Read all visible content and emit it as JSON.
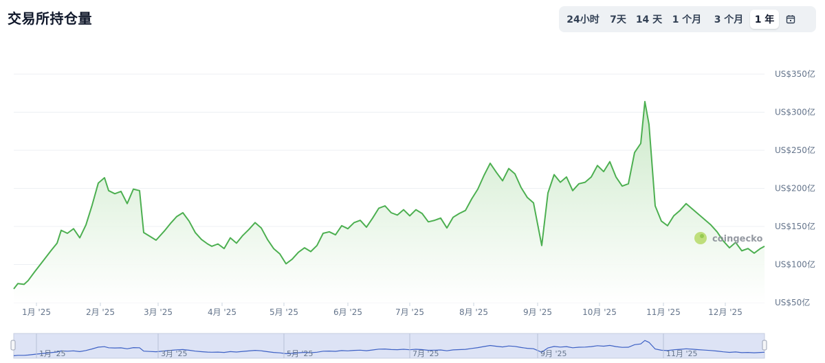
{
  "header": {
    "title": "交易所持仓量"
  },
  "range_selector": {
    "options": [
      "24小时",
      "7天",
      "14 天",
      "1 个月",
      "3 个月",
      "1 年"
    ],
    "active": "1 年",
    "calendar_icon": "calendar-icon"
  },
  "watermark": {
    "text": "coingecko",
    "logo_icon": "coingecko-gecko-icon"
  },
  "colors": {
    "line": "#4caf50",
    "fill_top": "#c9e8c6",
    "navigator_line": "#3b5fc4",
    "navigator_bg": "#dde3f5"
  },
  "chart_data": {
    "type": "area",
    "y_unit": "US$亿",
    "ylim": [
      50,
      350
    ],
    "y_ticks": [
      50,
      100,
      150,
      200,
      250,
      300,
      350
    ],
    "y_tick_labels": [
      "US$50亿",
      "US$100亿",
      "US$150亿",
      "US$200亿",
      "US$250亿",
      "US$300亿",
      "US$350亿"
    ],
    "x_ticks": [
      "1月 '25",
      "2月 '25",
      "3月 '25",
      "4月 '25",
      "5月 '25",
      "6月 '25",
      "7月 '25",
      "8月 '25",
      "9月 '25",
      "10月 '25",
      "11月 '25",
      "12月 '25"
    ],
    "navigator_ticks": [
      "1月 '25",
      "3月 '25",
      "5月 '25",
      "7月 '25",
      "9月 '25",
      "11月 '25"
    ],
    "grid": true,
    "x_start": "2024-12-21",
    "x_end": "2025-12-20",
    "series": [
      {
        "values": [
          [
            "2024-12-21",
            68
          ],
          [
            "2024-12-23",
            75
          ],
          [
            "2024-12-26",
            74
          ],
          [
            "2024-12-28",
            79
          ],
          [
            "2024-12-31",
            90
          ],
          [
            "2025-01-04",
            104
          ],
          [
            "2025-01-08",
            118
          ],
          [
            "2025-01-11",
            128
          ],
          [
            "2025-01-13",
            145
          ],
          [
            "2025-01-16",
            141
          ],
          [
            "2025-01-19",
            147
          ],
          [
            "2025-01-22",
            135
          ],
          [
            "2025-01-25",
            152
          ],
          [
            "2025-01-28",
            178
          ],
          [
            "2025-01-31",
            207
          ],
          [
            "2025-02-03",
            214
          ],
          [
            "2025-02-05",
            197
          ],
          [
            "2025-02-08",
            193
          ],
          [
            "2025-02-11",
            196
          ],
          [
            "2025-02-14",
            180
          ],
          [
            "2025-02-17",
            199
          ],
          [
            "2025-02-20",
            197
          ],
          [
            "2025-02-22",
            142
          ],
          [
            "2025-02-25",
            137
          ],
          [
            "2025-02-28",
            132
          ],
          [
            "2025-03-04",
            144
          ],
          [
            "2025-03-07",
            154
          ],
          [
            "2025-03-10",
            163
          ],
          [
            "2025-03-13",
            168
          ],
          [
            "2025-03-16",
            157
          ],
          [
            "2025-03-19",
            142
          ],
          [
            "2025-03-22",
            133
          ],
          [
            "2025-03-25",
            127
          ],
          [
            "2025-03-27",
            124
          ],
          [
            "2025-03-30",
            127
          ],
          [
            "2025-04-02",
            121
          ],
          [
            "2025-04-05",
            135
          ],
          [
            "2025-04-08",
            128
          ],
          [
            "2025-04-11",
            138
          ],
          [
            "2025-04-14",
            146
          ],
          [
            "2025-04-17",
            155
          ],
          [
            "2025-04-20",
            148
          ],
          [
            "2025-04-23",
            133
          ],
          [
            "2025-04-26",
            121
          ],
          [
            "2025-04-29",
            114
          ],
          [
            "2025-05-02",
            101
          ],
          [
            "2025-05-05",
            107
          ],
          [
            "2025-05-08",
            116
          ],
          [
            "2025-05-11",
            122
          ],
          [
            "2025-05-14",
            117
          ],
          [
            "2025-05-17",
            125
          ],
          [
            "2025-05-20",
            141
          ],
          [
            "2025-05-23",
            143
          ],
          [
            "2025-05-26",
            139
          ],
          [
            "2025-05-29",
            151
          ],
          [
            "2025-06-01",
            147
          ],
          [
            "2025-06-04",
            155
          ],
          [
            "2025-06-07",
            158
          ],
          [
            "2025-06-10",
            149
          ],
          [
            "2025-06-13",
            161
          ],
          [
            "2025-06-16",
            174
          ],
          [
            "2025-06-19",
            177
          ],
          [
            "2025-06-22",
            168
          ],
          [
            "2025-06-25",
            165
          ],
          [
            "2025-06-28",
            172
          ],
          [
            "2025-07-01",
            164
          ],
          [
            "2025-07-04",
            172
          ],
          [
            "2025-07-07",
            167
          ],
          [
            "2025-07-10",
            156
          ],
          [
            "2025-07-13",
            158
          ],
          [
            "2025-07-16",
            161
          ],
          [
            "2025-07-19",
            148
          ],
          [
            "2025-07-22",
            162
          ],
          [
            "2025-07-25",
            167
          ],
          [
            "2025-07-28",
            171
          ],
          [
            "2025-07-31",
            186
          ],
          [
            "2025-08-03",
            199
          ],
          [
            "2025-08-06",
            217
          ],
          [
            "2025-08-09",
            233
          ],
          [
            "2025-08-12",
            221
          ],
          [
            "2025-08-15",
            210
          ],
          [
            "2025-08-18",
            226
          ],
          [
            "2025-08-21",
            219
          ],
          [
            "2025-08-24",
            201
          ],
          [
            "2025-08-27",
            188
          ],
          [
            "2025-08-30",
            181
          ],
          [
            "2025-09-03",
            125
          ],
          [
            "2025-09-06",
            194
          ],
          [
            "2025-09-09",
            218
          ],
          [
            "2025-09-12",
            208
          ],
          [
            "2025-09-15",
            215
          ],
          [
            "2025-09-18",
            197
          ],
          [
            "2025-09-21",
            206
          ],
          [
            "2025-09-24",
            208
          ],
          [
            "2025-09-27",
            215
          ],
          [
            "2025-09-30",
            230
          ],
          [
            "2025-10-03",
            222
          ],
          [
            "2025-10-06",
            235
          ],
          [
            "2025-10-09",
            215
          ],
          [
            "2025-10-12",
            203
          ],
          [
            "2025-10-15",
            206
          ],
          [
            "2025-10-18",
            247
          ],
          [
            "2025-10-21",
            259
          ],
          [
            "2025-10-23",
            314
          ],
          [
            "2025-10-25",
            284
          ],
          [
            "2025-10-28",
            177
          ],
          [
            "2025-10-31",
            157
          ],
          [
            "2025-11-03",
            151
          ],
          [
            "2025-11-06",
            164
          ],
          [
            "2025-11-09",
            171
          ],
          [
            "2025-11-12",
            180
          ],
          [
            "2025-11-15",
            173
          ],
          [
            "2025-11-18",
            166
          ],
          [
            "2025-11-21",
            159
          ],
          [
            "2025-11-24",
            152
          ],
          [
            "2025-11-27",
            143
          ],
          [
            "2025-11-30",
            131
          ],
          [
            "2025-12-03",
            122
          ],
          [
            "2025-12-06",
            129
          ],
          [
            "2025-12-09",
            118
          ],
          [
            "2025-12-12",
            121
          ],
          [
            "2025-12-15",
            115
          ],
          [
            "2025-12-18",
            121
          ],
          [
            "2025-12-20",
            124
          ]
        ]
      }
    ]
  }
}
